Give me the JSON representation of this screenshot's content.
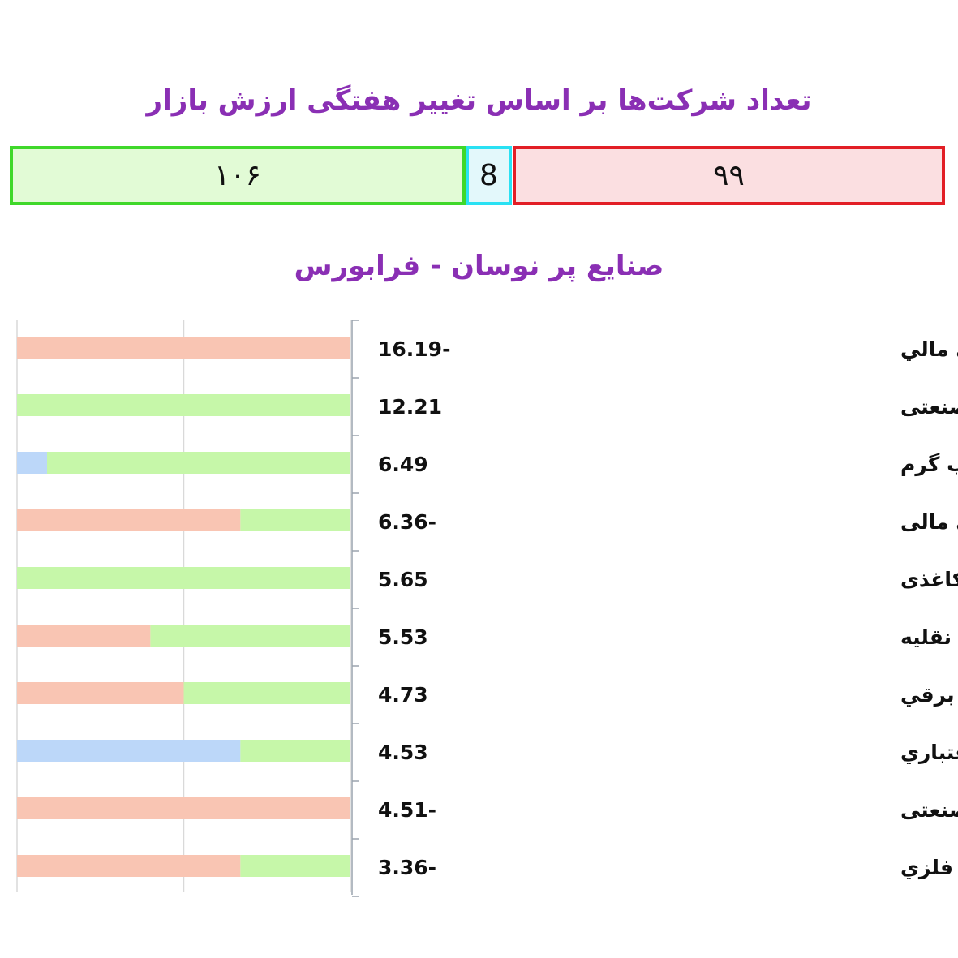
{
  "header": {
    "title": "تعداد شرکت‌ها بر اساس تغییر هفتگی ارزش بازار"
  },
  "summary": {
    "positive": "۱۰۶",
    "neutral": "8",
    "negative": "۹۹",
    "colors": {
      "positive_fill": "#e2fbd6",
      "positive_border": "#3fd82a",
      "neutral_fill": "#e3f8fb",
      "neutral_border": "#29e1f3",
      "negative_fill": "#fbdfe1",
      "negative_border": "#e21e25"
    }
  },
  "chart_title": "صنایع پر نوسان - فرابورس",
  "chart_data": {
    "type": "bar",
    "orientation": "horizontal-stacked-100",
    "segment_order": [
      "negative",
      "neutral",
      "positive"
    ],
    "colors": {
      "negative": "#f9c5b3",
      "neutral": "#bcd7f9",
      "positive": "#c6f7a9"
    },
    "categories": [
      "فعاليت هاي جنبي مرتبط با واسطه گري مالي",
      "پیمانکاری صنعتی",
      "عرضه برق، گاز، بخار و آب گرم",
      "سایر واسطه گری های مالی",
      "محصولات کاغذی",
      "خرده فروشی به استثنای وسایل نقلیه",
      "ماشين آلات و دستگاه هاي برقي",
      "بانک ها و موسسات اعتباري",
      "شرکتهای چند رشته ای صنعتی",
      "سایر محصولات كاني غير فلزي"
    ],
    "change_labels": [
      "16.19-",
      "12.21",
      "6.49",
      "6.36-",
      "5.65",
      "5.53",
      "4.73",
      "4.53",
      "4.51-",
      "3.36-"
    ],
    "series": [
      {
        "values": [
          100,
          0,
          0,
          67,
          0,
          40,
          50,
          0,
          100,
          67
        ]
      },
      {
        "values": [
          0,
          0,
          9,
          0,
          0,
          0,
          0,
          67,
          0,
          0
        ]
      },
      {
        "values": [
          0,
          100,
          91,
          33,
          100,
          60,
          50,
          33,
          0,
          33
        ]
      }
    ],
    "xlim": [
      0,
      100
    ],
    "grid": true
  }
}
